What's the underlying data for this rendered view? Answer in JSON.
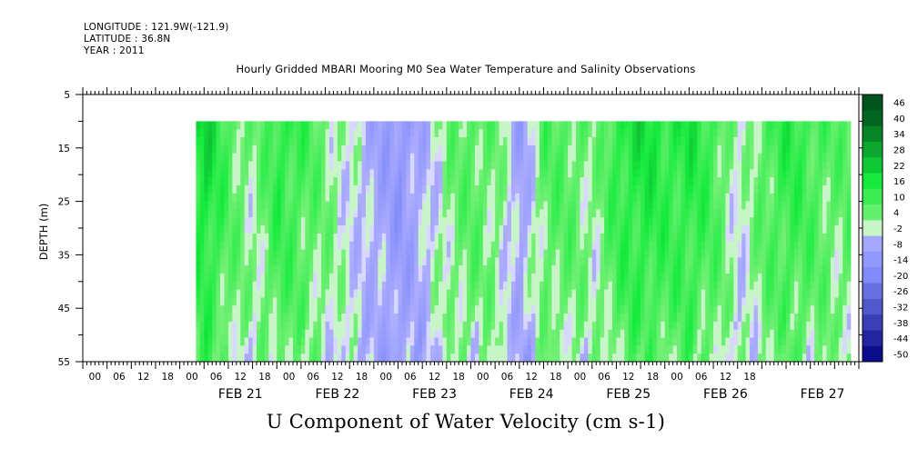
{
  "header": {
    "longitude": "LONGITUDE : 121.9W(-121.9)",
    "latitude": "LATITUDE : 36.8N",
    "year": "YEAR : 2011"
  },
  "chart_data": {
    "type": "heatmap",
    "title": "Hourly Gridded MBARI Mooring M0 Sea Water Temperature and Salinity Observations",
    "xlabel": "U Component of Water Velocity (cm s-1)",
    "ylabel": "DEPTH (m)",
    "y_ticks": [
      5,
      15,
      25,
      35,
      45,
      55
    ],
    "ylim": [
      55,
      5
    ],
    "data_depth_range": [
      10,
      55
    ],
    "x_hour_ticks": [
      "00",
      "06",
      "12",
      "18",
      "00",
      "06",
      "12",
      "18",
      "00",
      "06",
      "12",
      "18",
      "00",
      "06",
      "12",
      "18",
      "00",
      "06",
      "12",
      "18",
      "00",
      "06",
      "12",
      "18",
      "00",
      "06",
      "12",
      "18"
    ],
    "x_day_labels": [
      "FEB 21",
      "FEB 22",
      "FEB 23",
      "FEB 24",
      "FEB 25",
      "FEB 26",
      "FEB 27"
    ],
    "x_start": "2011-02-20 T00",
    "x_end": "2011-02-27 T23",
    "data_start": "2011-02-21 T04",
    "colorbar_levels": [
      46,
      40,
      34,
      28,
      22,
      16,
      10,
      4,
      -2,
      -8,
      -14,
      -20,
      -26,
      -32,
      -38,
      -44,
      -50
    ],
    "colormap": {
      "positive": "#00ff33",
      "positive_strong": "#005520",
      "neutral": "#ffffff",
      "negative": "#a0a0ff",
      "negative_strong": "#000080"
    },
    "surface_u_by_6h": [
      16,
      22,
      10,
      4,
      16,
      12,
      6,
      0,
      -6,
      -12,
      -4,
      6,
      10,
      6,
      -8,
      10,
      10,
      4,
      16,
      20,
      16,
      18,
      12,
      0,
      10,
      16,
      12,
      8,
      12,
      -12,
      -6,
      -8
    ]
  }
}
